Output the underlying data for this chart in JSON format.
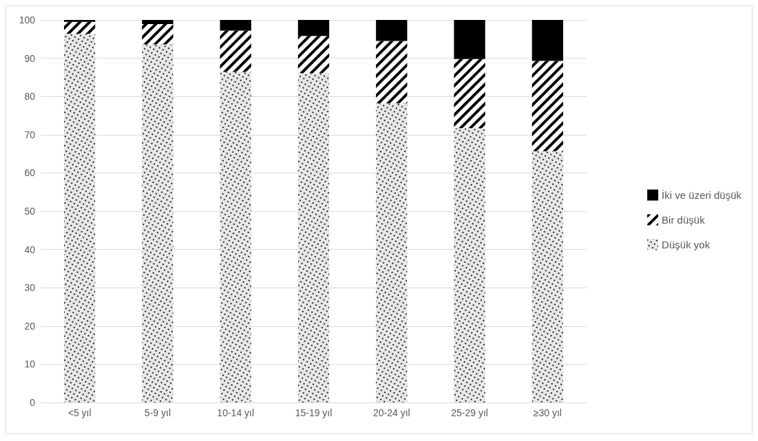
{
  "chart_data": {
    "type": "bar",
    "stacked": true,
    "categories": [
      "<5 yıl",
      "5-9 yıl",
      "10-14 yıl",
      "15-19 yıl",
      "20-24 yıl",
      "25-29 yıl",
      "≥30 yıl"
    ],
    "series": [
      {
        "name": "Düşük yok",
        "color": "#e8e8e8",
        "values": [
          96.4,
          93.6,
          86.4,
          86.1,
          78.2,
          71.7,
          65.7
        ]
      },
      {
        "name": "Bir düşük",
        "color": "#ffffff",
        "values": [
          3.1,
          5.3,
          10.8,
          9.7,
          16.3,
          18.1,
          23.6
        ]
      },
      {
        "name": "İki ve üzeri düşük",
        "color": "#000000",
        "values": [
          0.5,
          1.1,
          2.8,
          4.2,
          5.5,
          10.2,
          10.7
        ]
      }
    ],
    "ylim": [
      0,
      100
    ],
    "yticks": [
      0,
      10,
      20,
      30,
      40,
      50,
      60,
      70,
      80,
      90,
      100
    ],
    "grid": "y",
    "legend": "right"
  }
}
